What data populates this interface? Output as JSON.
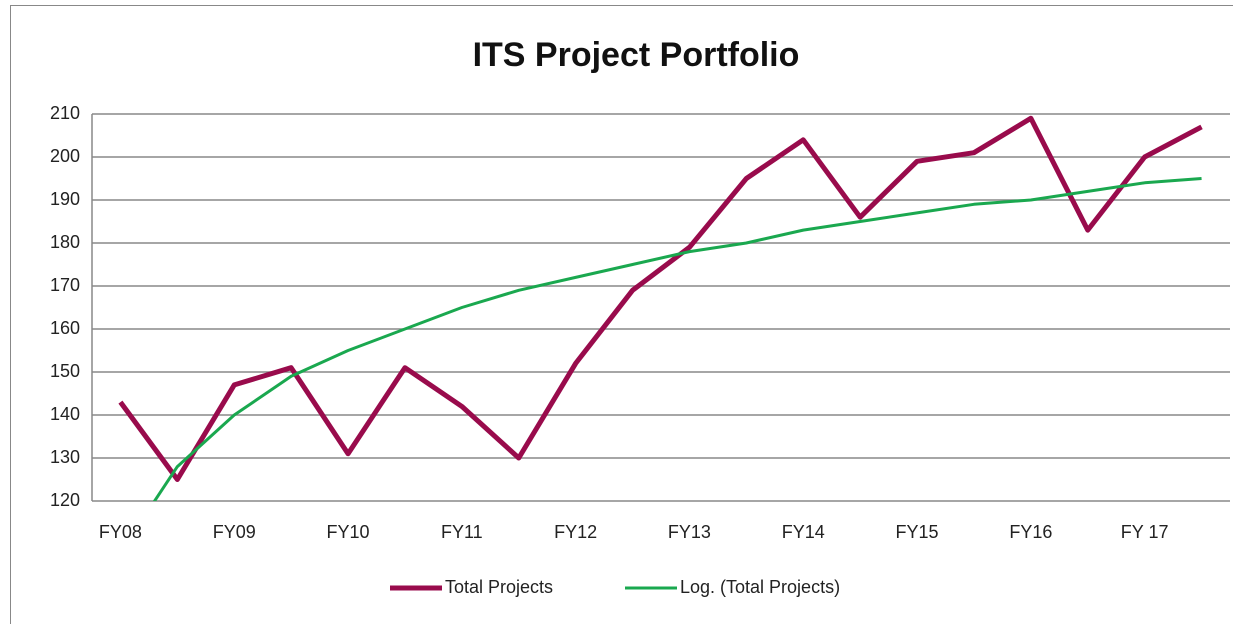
{
  "chart_data": {
    "type": "line",
    "title": "ITS Project Portfolio",
    "categories": [
      "FY08",
      null,
      "FY09",
      null,
      "FY10",
      null,
      "FY11",
      null,
      "FY12",
      null,
      "FY13",
      null,
      "FY14",
      null,
      "FY15",
      null,
      "FY16",
      null,
      "FY 17",
      null
    ],
    "series": [
      {
        "name": "Total Projects",
        "color": "#990b4c",
        "width": 5,
        "values": [
          143,
          125,
          147,
          151,
          131,
          151,
          142,
          130,
          152,
          169,
          179,
          195,
          204,
          186,
          199,
          201,
          209,
          183,
          200,
          207
        ]
      },
      {
        "name": "Log. (Total Projects)",
        "color": "#1aa84f",
        "width": 3,
        "values": [
          108,
          128,
          140,
          149,
          155,
          160,
          165,
          169,
          172,
          175,
          178,
          180,
          183,
          185,
          187,
          189,
          190,
          192,
          194,
          195
        ]
      }
    ],
    "ylim": [
      120,
      210
    ],
    "yticks": [
      120,
      130,
      140,
      150,
      160,
      170,
      180,
      190,
      200,
      210
    ],
    "grid": true,
    "legend": "bottom"
  }
}
